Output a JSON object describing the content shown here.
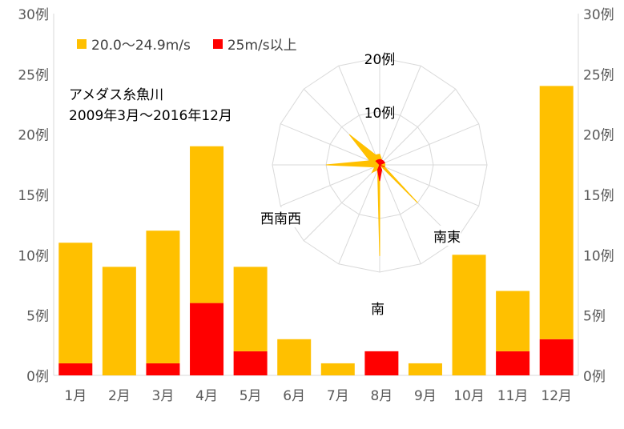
{
  "colors": {
    "low": "#FFC000",
    "high": "#FF0000",
    "grid": "#D9D9D9",
    "axis_text": "#595959"
  },
  "legend": {
    "low_label": "20.0〜24.9m/s",
    "high_label": "25m/s以上"
  },
  "annotation": {
    "line1": "アメダス糸魚川",
    "line2": "2009年3月〜2016年12月"
  },
  "chart_data": [
    {
      "type": "bar",
      "stacked": true,
      "categories": [
        "1月",
        "2月",
        "3月",
        "4月",
        "5月",
        "6月",
        "7月",
        "8月",
        "9月",
        "10月",
        "11月",
        "12月"
      ],
      "series": [
        {
          "name": "25m/s以上",
          "color": "#FF0000",
          "values": [
            1,
            0,
            1,
            6,
            2,
            0,
            0,
            2,
            0,
            0,
            2,
            3
          ]
        },
        {
          "name": "20.0〜24.9m/s",
          "color": "#FFC000",
          "values": [
            10,
            9,
            11,
            13,
            7,
            3,
            1,
            0,
            1,
            10,
            5,
            21
          ]
        }
      ],
      "ylim": [
        0,
        30
      ],
      "yticks": [
        "0例",
        "5例",
        "10例",
        "15例",
        "20例",
        "25例",
        "30例"
      ],
      "secondary_yticks": [
        "0例",
        "5例",
        "10例",
        "15例",
        "20例",
        "25例",
        "30例"
      ],
      "legend_position": "top-left"
    },
    {
      "type": "radar",
      "directions": 16,
      "start": "北",
      "rings": [
        "10例",
        "20例"
      ],
      "rmax": 20,
      "series": [
        {
          "name": "20.0〜24.9m/s",
          "color": "#FFC000",
          "values": [
            2,
            1,
            0,
            1,
            1,
            1,
            10,
            0,
            17,
            1,
            2,
            1,
            10,
            2,
            8,
            2
          ]
        },
        {
          "name": "25m/s以上",
          "color": "#FF0000",
          "values": [
            1,
            1,
            1,
            1,
            0,
            1,
            0,
            1,
            3,
            1,
            0,
            0,
            0,
            0,
            1,
            1
          ]
        }
      ],
      "direction_labels": [
        {
          "label": "南東"
        },
        {
          "label": "南"
        },
        {
          "label": "西南西"
        }
      ]
    }
  ]
}
